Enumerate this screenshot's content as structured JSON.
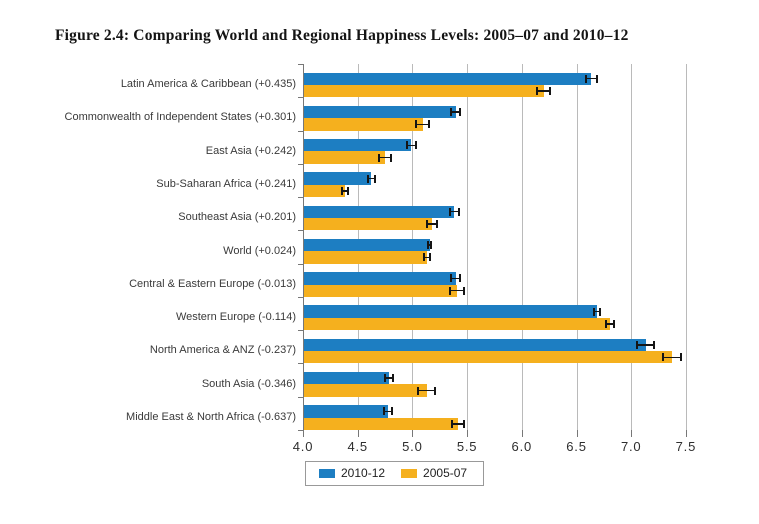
{
  "title": "Figure 2.4: Comparing World and Regional Happiness Levels: 2005–07 and 2010–12",
  "colors": {
    "bar_2010_12": "#1d7ec2",
    "bar_2005_07": "#f5b01e",
    "gridline": "#bababa",
    "axis": "#777777",
    "error_bar": "#151515",
    "legend_border": "#999999"
  },
  "legend": {
    "items": [
      {
        "label": "2010-12",
        "color": "#1d7ec2"
      },
      {
        "label": "2005-07",
        "color": "#f5b01e"
      }
    ]
  },
  "chart_data": {
    "type": "bar",
    "orientation": "horizontal",
    "title": "Figure 2.4: Comparing World and Regional Happiness Levels: 2005–07 and 2010–12",
    "xlabel": "",
    "ylabel": "",
    "xlim": [
      4.0,
      8.0
    ],
    "xticks": [
      4.0,
      4.5,
      5.0,
      5.5,
      6.0,
      6.5,
      7.0,
      7.5
    ],
    "grid": true,
    "legend_position": "bottom-left",
    "error_bars": true,
    "categories": [
      "Latin America & Caribbean (+0.435)",
      "Commonwealth of Independent States (+0.301)",
      "East Asia (+0.242)",
      "Sub-Saharan Africa (+0.241)",
      "Southeast Asia (+0.201)",
      "World (+0.024)",
      "Central & Eastern Europe (-0.013)",
      "Western Europe (-0.114)",
      "North America & ANZ (-0.237)",
      "South Asia (-0.346)",
      "Middle East & North Africa (-0.637)"
    ],
    "series": [
      {
        "name": "2010-12",
        "color": "#1d7ec2",
        "values": [
          6.634,
          5.394,
          4.99,
          4.626,
          5.381,
          5.158,
          5.395,
          6.689,
          7.133,
          4.783,
          4.78
        ],
        "errors": [
          0.06,
          0.05,
          0.05,
          0.04,
          0.05,
          0.025,
          0.05,
          0.035,
          0.085,
          0.045,
          0.045
        ]
      },
      {
        "name": "2005-07",
        "color": "#f5b01e",
        "values": [
          6.199,
          5.093,
          4.748,
          4.385,
          5.18,
          5.134,
          5.408,
          6.803,
          7.37,
          5.129,
          5.417
        ],
        "errors": [
          0.065,
          0.065,
          0.065,
          0.04,
          0.055,
          0.04,
          0.07,
          0.045,
          0.09,
          0.085,
          0.06
        ]
      }
    ]
  }
}
